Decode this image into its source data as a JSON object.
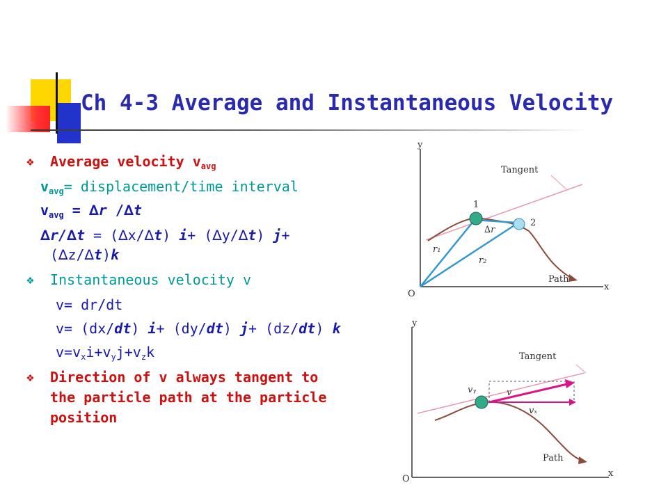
{
  "slide": {
    "title": "Ch 4-3 Average and Instantaneous Velocity",
    "bullets": {
      "avg": {
        "marker": "❖",
        "text": "Average velocity v",
        "sub": "avg"
      },
      "inst": {
        "marker": "❖",
        "text": "Instantaneous velocity v"
      },
      "dir": {
        "marker": "❖",
        "lines": [
          "Direction of v always tangent to",
          "the particle path at the particle",
          "position"
        ]
      }
    },
    "lines": {
      "vavg_def": {
        "v": "v",
        "sub": "avg",
        "rest": "= displacement/time interval"
      },
      "vavg_eq": {
        "v": "v",
        "sub": "avg",
        "eq": " = ",
        "d1": "∆",
        "r": "r",
        "slash": " /",
        "d2": "∆",
        "t": "t"
      },
      "comp1": {
        "d1": "∆",
        "r": "r/",
        "d2": "∆",
        "t": "t",
        "eq": " = (",
        "d3": "∆",
        "x": "x/",
        "d4": "∆",
        "t2": "t",
        "close": ") ",
        "i": "i",
        "plus": "+ (",
        "d5": "∆",
        "y": "y/",
        "d6": "∆",
        "t3": "t",
        "close2": ") ",
        "j": "j",
        "plus2": "+"
      },
      "comp2": {
        "open": "(",
        "d1": "∆",
        "z": "z/",
        "d2": "∆",
        "t": "t",
        "close": ")",
        "k": "k"
      },
      "inst1": "v= dr/dt",
      "inst2": {
        "a": "v= (dx/",
        "dt1": "dt",
        "b": ") ",
        "i": "i",
        "c": "+ (dy/",
        "dt2": "dt",
        "d": ") ",
        "j": "j",
        "e": "+ (dz/",
        "dt3": "dt",
        "f": ") ",
        "k": "k"
      },
      "inst3": {
        "a": "v=v",
        "sx": "x",
        "b": "i+v",
        "sy": "y",
        "c": "j+v",
        "sz": "z",
        "d": "k"
      }
    }
  },
  "diagram_top": {
    "y": "y",
    "x": "x",
    "origin": "O",
    "tangent": "Tangent",
    "path": "Path",
    "p1": "1",
    "p2": "2",
    "r1": "r₁",
    "r2": "r₂",
    "dr": "∆r"
  },
  "diagram_bottom": {
    "y": "y",
    "x": "x",
    "origin": "O",
    "tangent": "Tangent",
    "path": "Path",
    "vy": "vᵧ",
    "v": "v",
    "vx": "vₓ"
  },
  "colors": {
    "title": "#2a2ab0",
    "red": "#cc1111",
    "teal": "#009999",
    "blue": "#1a1aaa",
    "arrow": "#3399cc",
    "tangent": "#e899b0",
    "path": "#8b4a3a",
    "velocity": "#dd1188"
  }
}
